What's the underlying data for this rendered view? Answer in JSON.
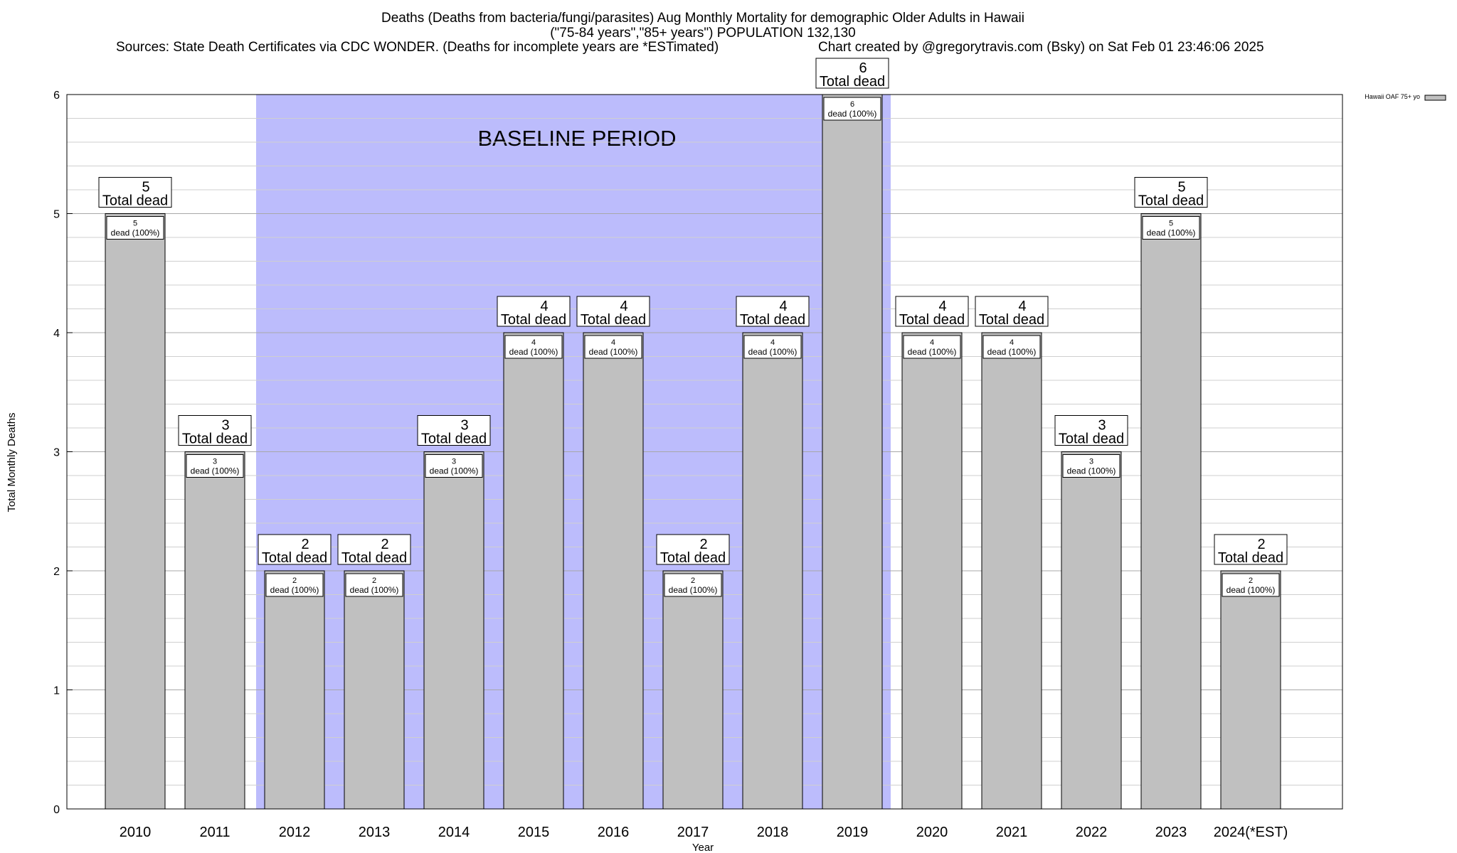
{
  "header": {
    "title_line1": "Deaths (Deaths from bacteria/fungi/parasites) Aug Monthly Mortality for demographic Older Adults in Hawaii",
    "title_line2": "(\"75-84 years\",\"85+ years\") POPULATION 132,130",
    "sources": "Sources: State Death Certificates via CDC WONDER. (Deaths for incomplete years are *ESTimated)",
    "credit": "Chart created by @gregorytravis.com (Bsky) on Sat Feb 01 23:46:06 2025"
  },
  "chart_data": {
    "type": "bar",
    "xlabel": "Year",
    "ylabel": "Total Monthly Deaths",
    "ylim": [
      0,
      6
    ],
    "yticks": [
      0,
      1,
      2,
      3,
      4,
      5,
      6
    ],
    "grid": true,
    "legend": {
      "label": "Hawaii OAF 75+ yo",
      "position": "top-right"
    },
    "categories": [
      "2010",
      "2011",
      "2012",
      "2013",
      "2014",
      "2015",
      "2016",
      "2017",
      "2018",
      "2019",
      "2020",
      "2021",
      "2022",
      "2023",
      "2024(*EST)"
    ],
    "series": [
      {
        "name": "Hawaii OAF 75+ yo",
        "values": [
          5,
          3,
          2,
          2,
          3,
          4,
          4,
          2,
          4,
          6,
          4,
          4,
          3,
          5,
          2
        ]
      }
    ],
    "top_label_suffix": "Total dead",
    "inner_label_suffix": "dead (100%)",
    "baseline": {
      "label": "BASELINE PERIOD",
      "start": "2012",
      "end": "2019"
    },
    "colors": {
      "bar": "#c0c0c0",
      "baseline": "#bcbcfc"
    }
  }
}
